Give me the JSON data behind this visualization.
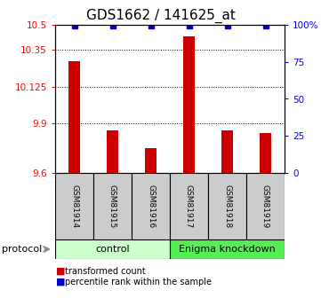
{
  "title": "GDS1662 / 141625_at",
  "samples": [
    "GSM81914",
    "GSM81915",
    "GSM81916",
    "GSM81917",
    "GSM81918",
    "GSM81919"
  ],
  "red_values": [
    10.28,
    9.86,
    9.75,
    10.43,
    9.86,
    9.84
  ],
  "y_min": 9.6,
  "y_max": 10.5,
  "y_ticks_left": [
    9.6,
    9.9,
    10.125,
    10.35,
    10.5
  ],
  "y_ticks_left_labels": [
    "9.6",
    "9.9",
    "10.125",
    "10.35",
    "10.5"
  ],
  "y_ticks_right": [
    0,
    25,
    50,
    75,
    100
  ],
  "y_ticks_right_labels": [
    "0",
    "25",
    "50",
    "75",
    "100%"
  ],
  "groups": [
    {
      "label": "control",
      "start": 0,
      "end": 3,
      "color": "#ccffcc"
    },
    {
      "label": "Enigma knockdown",
      "start": 3,
      "end": 6,
      "color": "#55ee55"
    }
  ],
  "bar_color": "#cc0000",
  "dot_color": "#0000cc",
  "sample_box_color": "#cccccc",
  "legend_red_label": "transformed count",
  "legend_blue_label": "percentile rank within the sample",
  "title_fontsize": 11,
  "tick_fontsize": 7.5,
  "sample_fontsize": 6.5,
  "group_fontsize": 8,
  "legend_fontsize": 7,
  "protocol_fontsize": 8
}
